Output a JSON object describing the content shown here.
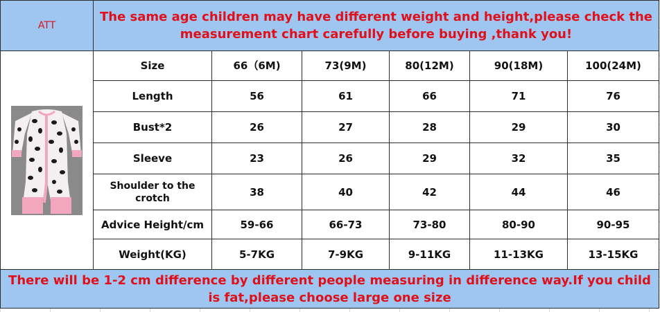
{
  "header": {
    "brand": "ATT",
    "notice": "The same age children may have different weight and height,please check the measurement chart carefully before buying ,thank you!"
  },
  "product_image": {
    "icon": "leopard-print-romper-icon",
    "colors": {
      "body": "#f4f0f2",
      "spots": "#1a1a1a",
      "trim": "#f2a7bf",
      "backdrop": "#8a8a8a"
    }
  },
  "table": {
    "columns": [
      "Size",
      "66（6M)",
      "73(9M)",
      "80(12M)",
      "90(18M)",
      "100(24M)"
    ],
    "rows": [
      {
        "label": "Length",
        "values": [
          "56",
          "61",
          "66",
          "71",
          "76"
        ]
      },
      {
        "label": "Bust*2",
        "values": [
          "26",
          "27",
          "28",
          "29",
          "30"
        ]
      },
      {
        "label": "Sleeve",
        "values": [
          "23",
          "26",
          "29",
          "32",
          "35"
        ]
      },
      {
        "label": "Shoulder to the crotch",
        "values": [
          "38",
          "40",
          "42",
          "44",
          "46"
        ]
      },
      {
        "label": "Advice Height/cm",
        "values": [
          "59-66",
          "66-73",
          "73-80",
          "80-90",
          "90-95"
        ]
      },
      {
        "label": "Weight(KG)",
        "values": [
          "5-7KG",
          "7-9KG",
          "9-11KG",
          "11-13KG",
          "13-15KG"
        ]
      }
    ]
  },
  "footer": {
    "notice": "There will be 1-2 cm difference by different people measuring in difference way.If you child is fat,please choose large one size"
  },
  "colors": {
    "header_bg": "#9ec6f0",
    "accent_text": "#e0101a"
  }
}
